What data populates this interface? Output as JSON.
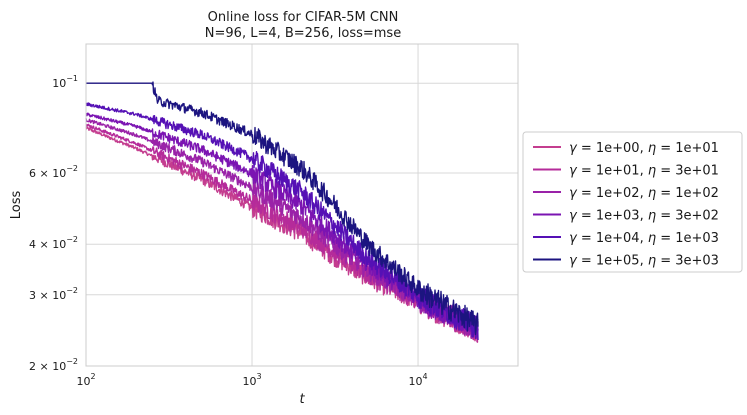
{
  "chart_data": {
    "type": "line",
    "title": "Online loss for CIFAR-5M CNN",
    "subtitle": "N=96, L=4, B=256, loss=mse",
    "xlabel": "t",
    "ylabel": "Loss",
    "x_scale": "log",
    "y_scale": "log",
    "xlim": [
      100,
      40000
    ],
    "ylim": [
      0.02,
      0.125
    ],
    "x_ticks": [
      {
        "value": 100,
        "base": "10",
        "exp": "2"
      },
      {
        "value": 1000,
        "base": "10",
        "exp": "3"
      },
      {
        "value": 10000,
        "base": "10",
        "exp": "4"
      }
    ],
    "y_ticks": [
      {
        "value": 0.1,
        "base": "10",
        "exp": "−1",
        "mant": ""
      },
      {
        "value": 0.06,
        "mant": "6 × ",
        "base": "10",
        "exp": "−2"
      },
      {
        "value": 0.04,
        "mant": "4 × ",
        "base": "10",
        "exp": "−2"
      },
      {
        "value": 0.03,
        "mant": "3 × ",
        "base": "10",
        "exp": "−2"
      },
      {
        "value": 0.02,
        "mant": "2 × ",
        "base": "10",
        "exp": "−2"
      }
    ],
    "grid": true,
    "legend_position": "right",
    "series": [
      {
        "name": "γ = 1e+00, η = 1e+01",
        "gamma": "1e+00",
        "eta": "1e+01",
        "color": "#c43d8f",
        "x": [
          100,
          200,
          500,
          1000,
          2000,
          3000,
          5000,
          10000,
          15000,
          23000
        ],
        "y": [
          0.0775,
          0.069,
          0.0578,
          0.0492,
          0.0425,
          0.0377,
          0.033,
          0.0288,
          0.0265,
          0.0245
        ]
      },
      {
        "name": "γ = 1e+01, η = 3e+01",
        "gamma": "1e+01",
        "eta": "3e+01",
        "color": "#b52b9a",
        "x": [
          100,
          200,
          500,
          1000,
          2000,
          3000,
          5000,
          10000,
          15000,
          23000
        ],
        "y": [
          0.079,
          0.071,
          0.0598,
          0.0512,
          0.0438,
          0.0388,
          0.0336,
          0.029,
          0.0266,
          0.0245
        ]
      },
      {
        "name": "γ = 1e+02, η = 1e+02",
        "gamma": "1e+02",
        "eta": "1e+02",
        "color": "#9a22a8",
        "x": [
          100,
          200,
          500,
          1000,
          2000,
          3000,
          5000,
          10000,
          15000,
          23000
        ],
        "y": [
          0.0812,
          0.0745,
          0.064,
          0.0553,
          0.0465,
          0.0405,
          0.0345,
          0.0292,
          0.0268,
          0.0246
        ]
      },
      {
        "name": "γ = 1e+03, η = 3e+02",
        "gamma": "1e+03",
        "eta": "3e+02",
        "color": "#7b14b2",
        "x": [
          100,
          200,
          500,
          1000,
          2000,
          3000,
          5000,
          10000,
          15000,
          23000
        ],
        "y": [
          0.0838,
          0.0782,
          0.0685,
          0.0598,
          0.0497,
          0.0428,
          0.0356,
          0.0295,
          0.027,
          0.0247
        ]
      },
      {
        "name": "γ = 1e+04, η = 1e+03",
        "gamma": "1e+04",
        "eta": "1e+03",
        "color": "#5510b5",
        "x": [
          100,
          200,
          500,
          1000,
          2000,
          3000,
          5000,
          10000,
          15000,
          23000
        ],
        "y": [
          0.0888,
          0.0838,
          0.0745,
          0.0652,
          0.0538,
          0.0455,
          0.0368,
          0.0298,
          0.0272,
          0.0248
        ]
      },
      {
        "name": "γ = 1e+05, η = 3e+03",
        "gamma": "1e+05",
        "eta": "3e+03",
        "color": "#1c1480",
        "x": [
          100,
          250,
          270,
          500,
          1000,
          2000,
          3000,
          5000,
          10000,
          15000,
          23000
        ],
        "y": [
          0.1,
          0.1,
          0.0905,
          0.0845,
          0.0748,
          0.0615,
          0.0512,
          0.0398,
          0.031,
          0.028,
          0.0252
        ]
      }
    ]
  }
}
